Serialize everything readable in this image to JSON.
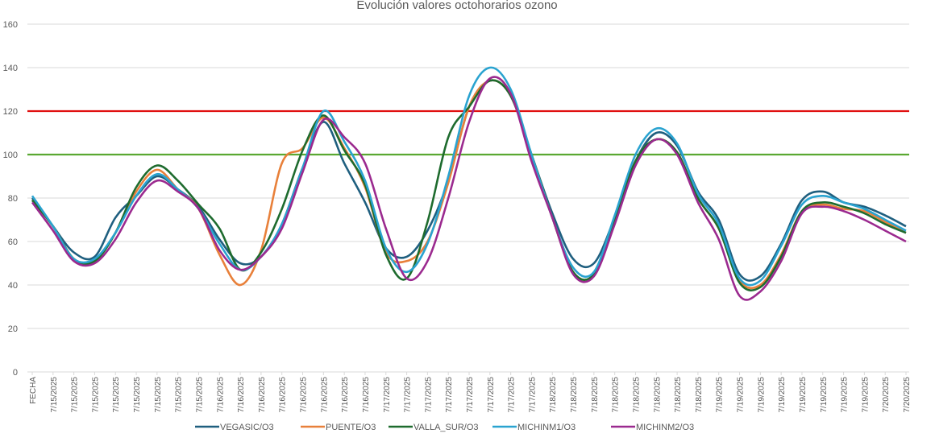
{
  "chart_data": {
    "type": "line",
    "title": "Evolución valores octohorarios ozono",
    "xlabel": "",
    "ylabel": "",
    "ylim": [
      0,
      160
    ],
    "yticks": [
      0,
      20,
      40,
      60,
      80,
      100,
      120,
      140,
      160
    ],
    "grid": true,
    "legend_position": "bottom",
    "categories": [
      "FECHA",
      "7/15/2025",
      "7/15/2025",
      "7/15/2025",
      "7/15/2025",
      "7/15/2025",
      "7/15/2025",
      "7/15/2025",
      "7/15/2025",
      "7/16/2025",
      "7/16/2025",
      "7/16/2025",
      "7/16/2025",
      "7/16/2025",
      "7/16/2025",
      "7/16/2025",
      "7/16/2025",
      "7/17/2025",
      "7/17/2025",
      "7/17/2025",
      "7/17/2025",
      "7/17/2025",
      "7/17/2025",
      "7/17/2025",
      "7/17/2025",
      "7/18/2025",
      "7/18/2025",
      "7/18/2025",
      "7/18/2025",
      "7/18/2025",
      "7/18/2025",
      "7/18/2025",
      "7/18/2025",
      "7/19/2025",
      "7/19/2025",
      "7/19/2025",
      "7/19/2025",
      "7/19/2025",
      "7/19/2025",
      "7/19/2025",
      "7/19/2025",
      "7/20/2025",
      "7/20/2025"
    ],
    "reference_lines": [
      {
        "value": 120,
        "color": "#e01010"
      },
      {
        "value": 100,
        "color": "#5aa832"
      }
    ],
    "series": [
      {
        "name": "VEGASIC/O3",
        "color": "#1f5f7f",
        "values": [
          80,
          67,
          55,
          53,
          71,
          81,
          90,
          84,
          76,
          61,
          50,
          53,
          68,
          94,
          115,
          96,
          78,
          57,
          53,
          65,
          88,
          122,
          134,
          127,
          100,
          73,
          52,
          50,
          71,
          97,
          110,
          104,
          83,
          70,
          45,
          44,
          59,
          79,
          83,
          78,
          76,
          72,
          67
        ]
      },
      {
        "name": "PUENTE/O3",
        "color": "#e8803a",
        "values": [
          79,
          67,
          52,
          51,
          64,
          83,
          93,
          84,
          75,
          54,
          40,
          56,
          96,
          103,
          117,
          103,
          85,
          55,
          51,
          60,
          87,
          122,
          134,
          127,
          100,
          71,
          46,
          45,
          70,
          97,
          107,
          101,
          80,
          66,
          42,
          40,
          54,
          74,
          77,
          75,
          74,
          69,
          64
        ]
      },
      {
        "name": "VALLA_SUR/O3",
        "color": "#1e6b2e",
        "values": [
          79,
          67,
          52,
          51,
          64,
          85,
          95,
          88,
          77,
          66,
          47,
          55,
          75,
          102,
          118,
          102,
          86,
          54,
          43,
          69,
          108,
          122,
          134,
          127,
          100,
          71,
          46,
          45,
          70,
          97,
          107,
          101,
          80,
          66,
          41,
          39,
          53,
          74,
          78,
          76,
          73,
          68,
          64
        ]
      },
      {
        "name": "MICHINM1/O3",
        "color": "#2aa3d0",
        "values": [
          81,
          67,
          52,
          52,
          64,
          81,
          91,
          84,
          75,
          59,
          47,
          53,
          68,
          94,
          120,
          106,
          88,
          57,
          46,
          59,
          90,
          127,
          140,
          130,
          100,
          71,
          48,
          46,
          72,
          100,
          112,
          105,
          82,
          68,
          43,
          42,
          58,
          77,
          81,
          78,
          75,
          70,
          65
        ]
      },
      {
        "name": "MICHINM2/O3",
        "color": "#9b2a8f",
        "values": [
          78,
          65,
          51,
          50,
          61,
          78,
          88,
          83,
          75,
          56,
          47,
          53,
          66,
          92,
          116,
          108,
          96,
          66,
          43,
          51,
          80,
          115,
          135,
          128,
          97,
          71,
          45,
          44,
          68,
          95,
          107,
          100,
          78,
          61,
          35,
          37,
          51,
          73,
          76,
          74,
          70,
          65,
          60
        ]
      }
    ]
  }
}
